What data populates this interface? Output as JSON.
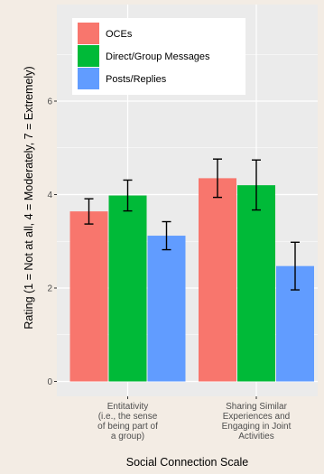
{
  "chart_data": {
    "type": "bar",
    "xlabel": "Social Connection Scale",
    "ylabel": "Rating (1 = Not at all, 4 = Moderately, 7 = Extremely)",
    "ylim": [
      0,
      7.3
    ],
    "yticks": [
      0,
      2,
      4,
      6
    ],
    "categories": [
      [
        "Entitativity",
        "(i.e., the sense",
        "of being part of",
        "a group)"
      ],
      [
        "Sharing Similar",
        "Experiences and",
        "Engaging in Joint",
        "Activities"
      ]
    ],
    "series": [
      {
        "name": "OCEs",
        "color": "#f8766d",
        "values": [
          3.64,
          4.35
        ],
        "err_low": [
          3.37,
          3.94
        ],
        "err_high": [
          3.91,
          4.76
        ]
      },
      {
        "name": "Direct/Group Messages",
        "color": "#00ba38",
        "values": [
          3.98,
          4.2
        ],
        "err_low": [
          3.65,
          3.67
        ],
        "err_high": [
          4.31,
          4.74
        ]
      },
      {
        "name": "Posts/Replies",
        "color": "#619cff",
        "values": [
          3.12,
          2.47
        ],
        "err_low": [
          2.82,
          1.96
        ],
        "err_high": [
          3.42,
          2.98
        ]
      }
    ],
    "grid": true,
    "legend_position": "top-left-inside",
    "background_color": "#ebebeb",
    "grid_color": "#ffffff"
  }
}
